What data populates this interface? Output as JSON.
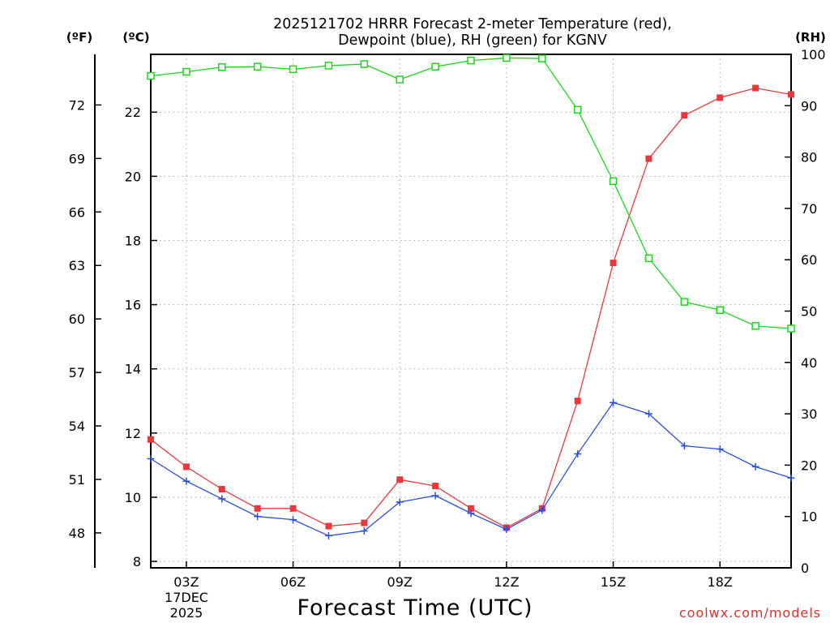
{
  "chart_data": {
    "type": "line",
    "title_line1": "2025121702 HRRR Forecast 2-meter Temperature (red),",
    "title_line2": "Dewpoint (blue), RH (green) for KGNV",
    "xlabel": "Forecast Time (UTC)",
    "credit": "coolwx.com/models",
    "unit_f": "(ºF)",
    "unit_c": "(ºC)",
    "unit_rh": "(RH)",
    "date_label_line1": "17DEC",
    "date_label_line2": "2025",
    "x": [
      2,
      3,
      4,
      5,
      6,
      7,
      8,
      9,
      10,
      11,
      12,
      13,
      14,
      15,
      16,
      17,
      18,
      19,
      20
    ],
    "xlim": [
      2,
      20
    ],
    "x_ticks": [
      {
        "value": 3,
        "label": "03Z"
      },
      {
        "value": 6,
        "label": "06Z"
      },
      {
        "value": 9,
        "label": "09Z"
      },
      {
        "value": 12,
        "label": "12Z"
      },
      {
        "value": 15,
        "label": "15Z"
      },
      {
        "value": 18,
        "label": "18Z"
      }
    ],
    "ylim_c": [
      7.8,
      23.8
    ],
    "y_ticks_c": [
      8,
      10,
      12,
      14,
      16,
      18,
      20,
      22
    ],
    "y_ticks_f": [
      48,
      51,
      54,
      57,
      60,
      63,
      66,
      69,
      72
    ],
    "ylim_rh": [
      0,
      100
    ],
    "y_ticks_rh": [
      0,
      10,
      20,
      30,
      40,
      50,
      60,
      70,
      80,
      90,
      100
    ],
    "series": [
      {
        "name": "Temperature",
        "axis": "c",
        "color": "#e8383d",
        "marker": "filled-square",
        "values": [
          11.8,
          10.95,
          10.25,
          9.65,
          9.65,
          9.1,
          9.2,
          10.55,
          10.35,
          9.65,
          9.05,
          9.65,
          13.0,
          17.3,
          20.55,
          21.9,
          22.45,
          22.75,
          22.55
        ]
      },
      {
        "name": "Dewpoint",
        "axis": "c",
        "color": "#2a4fe0",
        "marker": "plus",
        "values": [
          11.2,
          10.5,
          9.95,
          9.4,
          9.3,
          8.8,
          8.95,
          9.85,
          10.05,
          9.5,
          9.0,
          9.6,
          11.35,
          12.95,
          12.6,
          11.6,
          11.5,
          10.95,
          10.6
        ]
      },
      {
        "name": "RH",
        "axis": "rh",
        "color": "#18d818",
        "marker": "open-square",
        "values": [
          95.8,
          96.6,
          97.5,
          97.6,
          97.1,
          97.8,
          98.1,
          95.1,
          97.6,
          98.8,
          99.3,
          99.2,
          89.2,
          75.3,
          60.3,
          51.8,
          50.2,
          47.1,
          46.6
        ]
      }
    ]
  }
}
